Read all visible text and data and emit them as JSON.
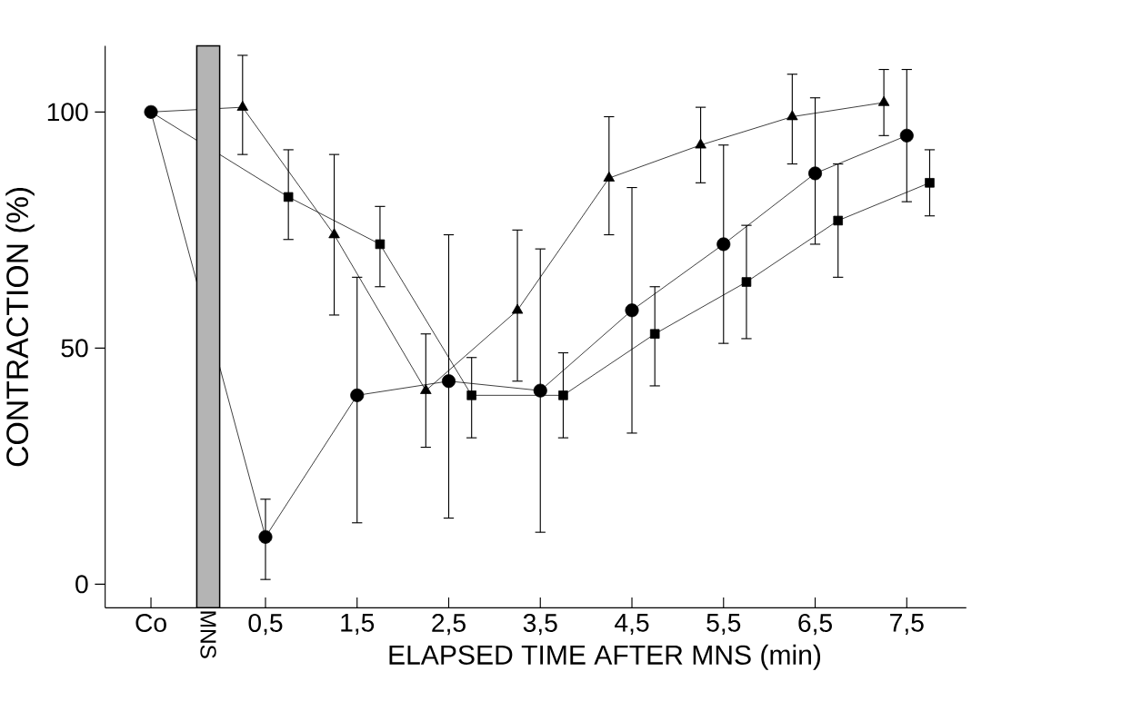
{
  "chart_data": {
    "type": "line",
    "xlabel": "ELAPSED TIME AFTER MNS (min)",
    "ylabel": "CONTRACTION (%)",
    "xlim": [
      -1.25,
      8.15
    ],
    "ylim": [
      -5,
      114
    ],
    "xticks": [
      {
        "value": -0.75,
        "label": "Co"
      },
      {
        "value": 0.5,
        "label": "0,5"
      },
      {
        "value": 1.5,
        "label": "1,5"
      },
      {
        "value": 2.5,
        "label": "2,5"
      },
      {
        "value": 3.5,
        "label": "3,5"
      },
      {
        "value": 4.5,
        "label": "4,5"
      },
      {
        "value": 5.5,
        "label": "5,5"
      },
      {
        "value": 6.5,
        "label": "6,5"
      },
      {
        "value": 7.5,
        "label": "7,5"
      }
    ],
    "yticks": [
      0,
      50,
      100
    ],
    "grid": false,
    "bands": [
      {
        "axis": "x",
        "from": -0.25,
        "to": 0,
        "label": "MNS",
        "color": "#b4b4b4"
      }
    ],
    "series": [
      {
        "color": "#000000",
        "marker": "circle",
        "x": [
          -0.75,
          0.5,
          1.5,
          2.5,
          3.5,
          4.5,
          5.5,
          6.5,
          7.5
        ],
        "values": [
          100,
          10,
          40,
          43,
          41,
          58,
          72,
          87,
          95
        ],
        "errors": [
          null,
          [
            1,
            18
          ],
          [
            13,
            65
          ],
          [
            14,
            74
          ],
          [
            11,
            71
          ],
          [
            32,
            84
          ],
          [
            51,
            93
          ],
          [
            72,
            103
          ],
          [
            81,
            109
          ]
        ]
      },
      {
        "color": "#000000",
        "marker": "square",
        "x": [
          -0.75,
          0.75,
          1.75,
          2.75,
          3.75,
          4.75,
          5.75,
          6.75,
          7.75
        ],
        "values": [
          100,
          82,
          72,
          40,
          40,
          53,
          64,
          77,
          85
        ],
        "errors": [
          null,
          [
            73,
            92
          ],
          [
            63,
            80
          ],
          [
            31,
            48
          ],
          [
            31,
            49
          ],
          [
            42,
            63
          ],
          [
            52,
            76
          ],
          [
            65,
            89
          ],
          [
            78,
            92
          ]
        ]
      },
      {
        "color": "#000000",
        "marker": "triangle",
        "x": [
          -0.75,
          0.25,
          1.25,
          2.25,
          3.25,
          4.25,
          5.25,
          6.25,
          7.25
        ],
        "values": [
          100,
          101,
          74,
          41,
          58,
          86,
          93,
          99,
          102
        ],
        "errors": [
          null,
          [
            91,
            112
          ],
          [
            57,
            91
          ],
          [
            29,
            53
          ],
          [
            43,
            75
          ],
          [
            74,
            99
          ],
          [
            85,
            101
          ],
          [
            89,
            108
          ],
          [
            95,
            109
          ]
        ]
      }
    ]
  }
}
